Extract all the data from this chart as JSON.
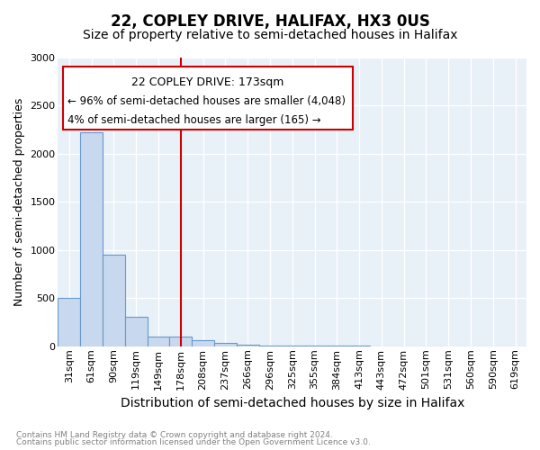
{
  "title": "22, COPLEY DRIVE, HALIFAX, HX3 0US",
  "subtitle": "Size of property relative to semi-detached houses in Halifax",
  "xlabel": "Distribution of semi-detached houses by size in Halifax",
  "ylabel": "Number of semi-detached properties",
  "footnote1": "Contains HM Land Registry data © Crown copyright and database right 2024.",
  "footnote2": "Contains public sector information licensed under the Open Government Licence v3.0.",
  "annotation_line1": "22 COPLEY DRIVE: 173sqm",
  "annotation_line2": "← 96% of semi-detached houses are smaller (4,048)",
  "annotation_line3": "4% of semi-detached houses are larger (165) →",
  "marker_category_idx": 5,
  "categories": [
    "31sqm",
    "61sqm",
    "90sqm",
    "119sqm",
    "149sqm",
    "178sqm",
    "208sqm",
    "237sqm",
    "266sqm",
    "296sqm",
    "325sqm",
    "355sqm",
    "384sqm",
    "413sqm",
    "443sqm",
    "472sqm",
    "501sqm",
    "531sqm",
    "560sqm",
    "590sqm",
    "619sqm"
  ],
  "values": [
    500,
    2225,
    950,
    305,
    100,
    100,
    60,
    35,
    20,
    10,
    5,
    5,
    3,
    3,
    2,
    2,
    1,
    1,
    1,
    1,
    1
  ],
  "bar_face_color": "#c8d8ee",
  "bar_edge_color": "#6699cc",
  "marker_color": "#cc0000",
  "annotation_box_color": "#cc0000",
  "background_color": "#ffffff",
  "plot_bg_color": "#e8f0f8",
  "grid_color": "#ffffff",
  "ylim": [
    0,
    3000
  ],
  "yticks": [
    0,
    500,
    1000,
    1500,
    2000,
    2500,
    3000
  ],
  "title_fontsize": 12,
  "subtitle_fontsize": 10,
  "ylabel_fontsize": 9,
  "xlabel_fontsize": 10,
  "tick_fontsize": 8,
  "annotation_fontsize": 9
}
